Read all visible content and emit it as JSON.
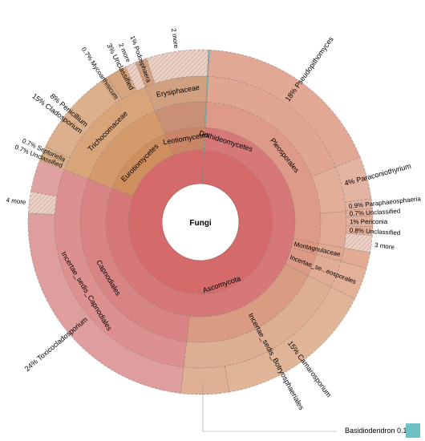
{
  "chart_data": {
    "type": "sunburst",
    "title": "",
    "root": "Fungi",
    "nodes": [
      {
        "id": "asco",
        "name": "Ascomycota",
        "level": 1,
        "start": 0,
        "end": 99.9,
        "color": "#d46a6a"
      },
      {
        "id": "basidio",
        "name": "",
        "level": 1,
        "start": 99.9,
        "end": 100,
        "color": "#6fc1c5"
      },
      {
        "id": "doth",
        "name": "Dothideomycetes",
        "level": 2,
        "start": 0,
        "end": 80,
        "color": "#d67878"
      },
      {
        "id": "euro",
        "name": "Eurotiomycetes",
        "level": 2,
        "start": 80,
        "end": 93,
        "color": "#cf8e5e"
      },
      {
        "id": "leo",
        "name": "Leotiomycetes",
        "level": 2,
        "start": 93,
        "end": 99.9,
        "color": "#c98565"
      },
      {
        "id": "basidio2",
        "name": "",
        "level": 2,
        "start": 99.9,
        "end": 100,
        "color": "#6fc1c5"
      },
      {
        "id": "pleo",
        "name": "Pleosporales",
        "level": 3,
        "start": 0,
        "end": 27,
        "color": "#dd9a88"
      },
      {
        "id": "mont",
        "name": "Montagnulaceae",
        "level": 3,
        "start": 27,
        "end": 28.5,
        "color": "#dc9882"
      },
      {
        "id": "ins",
        "name": "Incertae_se...eosporales",
        "level": 3,
        "start": 28.5,
        "end": 31.5,
        "color": "#dc9a86"
      },
      {
        "id": "botryo",
        "name": "Incertae_sedis_Botryosphaeriales",
        "level": 3,
        "start": 31.5,
        "end": 51,
        "color": "#d99b82"
      },
      {
        "id": "capno",
        "name": "Capnodiales",
        "level": 3,
        "start": 51,
        "end": 80,
        "color": "#d98484"
      },
      {
        "id": "eurotiales",
        "name": "Eurotiales",
        "level": 3,
        "start": 80,
        "end": 93,
        "color": "#d49a6c"
      },
      {
        "id": "erysi",
        "name": "Erysiphales",
        "level": 3,
        "start": 93,
        "end": 99.9,
        "color": "#c99075"
      },
      {
        "id": "basidio3",
        "name": "",
        "level": 3,
        "start": 99.9,
        "end": 100,
        "color": "#6fc1c5"
      },
      {
        "id": "pleo_unc_f",
        "name": "",
        "level": 4,
        "start": 0,
        "end": 18,
        "color": "#e1a692"
      },
      {
        "id": "phaeo",
        "name": "",
        "level": 4,
        "start": 18,
        "end": 23,
        "color": "#e2ae9a"
      },
      {
        "id": "pleo_rest",
        "name": "",
        "level": 4,
        "start": 23,
        "end": 27,
        "color": "#e1aa96"
      },
      {
        "id": "mont_f",
        "name": "",
        "level": 4,
        "start": 27,
        "end": 28.5,
        "color": "#e0a890"
      },
      {
        "id": "ins_f",
        "name": "",
        "level": 4,
        "start": 28.5,
        "end": 31.5,
        "color": "#e1ac94"
      },
      {
        "id": "botryo_f",
        "name": "",
        "level": 4,
        "start": 31.5,
        "end": 51,
        "color": "#deae92"
      },
      {
        "id": "capno_f",
        "name": "Incertae_sedis_Capnodiales",
        "level": 4,
        "start": 51,
        "end": 80,
        "color": "#dc9090"
      },
      {
        "id": "tricho",
        "name": "Trichocomaceae",
        "level": 4,
        "start": 80,
        "end": 93,
        "color": "#d8a47a"
      },
      {
        "id": "erysiphaceae",
        "name": "Erysiphaceae",
        "level": 4,
        "start": 93,
        "end": 99.9,
        "color": "#d0a080"
      },
      {
        "id": "basidio4",
        "name": "",
        "level": 4,
        "start": 99.9,
        "end": 100,
        "color": "#6fc1c5"
      },
      {
        "id": "pseudo",
        "name": "Pseudopithomyces",
        "pct": "18%",
        "level": 5,
        "start": 0,
        "end": 18,
        "color": "#e2a896"
      },
      {
        "id": "paracon",
        "name": "Paraconiothyrium",
        "pct": "4%",
        "level": 5,
        "start": 18,
        "end": 22,
        "color": "#e4b4a2"
      },
      {
        "id": "paraphaeo",
        "name": "Paraphaeosphaeria",
        "pct": "0.9%",
        "level": 5,
        "start": 22,
        "end": 22.9,
        "color": "#e4b2a0"
      },
      {
        "id": "pleo_unc",
        "name": "Unclassified",
        "pct": "0.7%",
        "level": 5,
        "start": 22.9,
        "end": 23.6,
        "color": "#e3b09e"
      },
      {
        "id": "periconia",
        "name": "Periconia",
        "pct": "1%",
        "level": 5,
        "start": 23.6,
        "end": 24.6,
        "color": "#e3b09c"
      },
      {
        "id": "pleo_unc2",
        "name": "Unclassified",
        "pct": "0.8%",
        "level": 5,
        "start": 24.6,
        "end": 25.4,
        "color": "#e2ae9a"
      },
      {
        "id": "three_more",
        "name": "3 more",
        "level": 5,
        "start": 25.4,
        "end": 27,
        "color": "#e6c2b4",
        "hatched": true
      },
      {
        "id": "mont_g",
        "name": "",
        "level": 5,
        "start": 27,
        "end": 28.5,
        "color": "#e2ac94"
      },
      {
        "id": "ins_g",
        "name": "",
        "level": 5,
        "start": 28.5,
        "end": 31.5,
        "color": "#e3b098"
      },
      {
        "id": "camaro",
        "name": "Camarosporium",
        "pct": "15%",
        "level": 5,
        "start": 31.5,
        "end": 46.5,
        "color": "#e0b496"
      },
      {
        "id": "botryo_g",
        "name": "",
        "level": 5,
        "start": 46.5,
        "end": 51,
        "color": "#dfb094"
      },
      {
        "id": "toxico",
        "name": "Toxicocladosporium",
        "pct": "24%",
        "level": 5,
        "start": 51,
        "end": 75,
        "color": "#df9e9e"
      },
      {
        "id": "four_more",
        "name": "4 more",
        "level": 5,
        "start": 75,
        "end": 77,
        "color": "#e8c4c0",
        "hatched": true
      },
      {
        "id": "clado",
        "name": "Cladosporium",
        "pct": "15%",
        "level": 5,
        "start": 77,
        "end": 92,
        "color": "#e0a2a0"
      },
      {
        "id": "tricho_unc",
        "name": "Unclassified",
        "pct": "0.7%",
        "level": 5,
        "start": 80,
        "end": 80.7,
        "color": "#dab08a"
      },
      {
        "id": "septo",
        "name": "Septoriella",
        "pct": "0.7%",
        "level": 5,
        "start": 80.7,
        "end": 81.4,
        "color": "#dab08a"
      },
      {
        "id": "penic",
        "name": "Penicillium",
        "pct": "8%",
        "level": 5,
        "start": 81.4,
        "end": 89.4,
        "color": "#dcb08c"
      },
      {
        "id": "myco",
        "name": "Mycoarthisicum",
        "pct": "0.7%",
        "level": 5,
        "start": 89.4,
        "end": 90.1,
        "color": "#d8a882"
      },
      {
        "id": "erys_unc",
        "name": "Unclassified",
        "pct": "3%",
        "level": 5,
        "start": 90.1,
        "end": 93.1,
        "color": "#d6a47e"
      },
      {
        "id": "podo",
        "name": "Podosphaera",
        "pct": "1%",
        "level": 5,
        "start": 93.1,
        "end": 94.1,
        "color": "#d2a080"
      },
      {
        "id": "two_more",
        "name": "2 more",
        "level": 5,
        "start": 94.1,
        "end": 99.9,
        "color": "#e2c6ba",
        "hatched": true
      },
      {
        "id": "basidiodendron",
        "name": "Basidiodendron",
        "pct": "0.1%",
        "level": 5,
        "start": 99.9,
        "end": 100,
        "color": "#6fc1c5"
      },
      {
        "id": "two_more_top",
        "name": "2 more",
        "level": 5,
        "start": 92,
        "end": 93,
        "color": "#e8c4c0",
        "hatched": true
      }
    ]
  }
}
